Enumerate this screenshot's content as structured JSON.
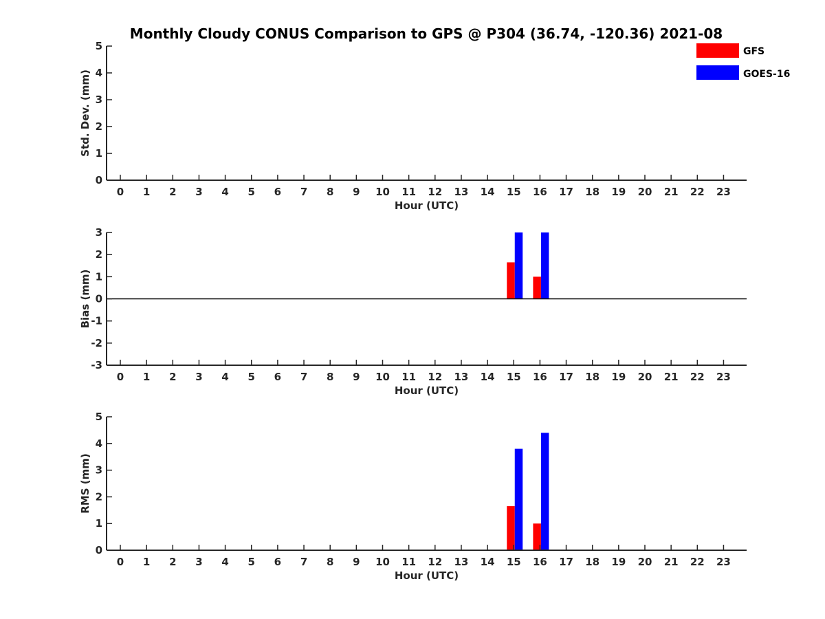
{
  "title": "Monthly Cloudy CONUS Comparison to GPS @ P304 (36.74, -120.36) 2021-08",
  "legend": [
    {
      "name": "GFS",
      "color": "#ff0000"
    },
    {
      "name": "GOES-16",
      "color": "#0000ff"
    }
  ],
  "chart_data": [
    {
      "type": "bar",
      "ylabel": "Std. Dev. (mm)",
      "xlabel": "Hour (UTC)",
      "categories": [
        "0",
        "1",
        "2",
        "3",
        "4",
        "5",
        "6",
        "7",
        "8",
        "9",
        "10",
        "11",
        "12",
        "13",
        "14",
        "15",
        "16",
        "17",
        "18",
        "19",
        "20",
        "21",
        "22",
        "23"
      ],
      "ylim": [
        0,
        5
      ],
      "yticks": [
        "0",
        "1",
        "2",
        "3",
        "4",
        "5"
      ],
      "series": [
        {
          "name": "GFS",
          "values": [
            0,
            0,
            0,
            0,
            0,
            0,
            0,
            0,
            0,
            0,
            0,
            0,
            0,
            0,
            0,
            0,
            0,
            0,
            0,
            0,
            0,
            0,
            0,
            0
          ]
        },
        {
          "name": "GOES-16",
          "values": [
            0,
            0,
            0,
            0,
            0,
            0,
            0,
            0,
            0,
            0,
            0,
            0,
            0,
            0,
            0,
            0,
            0,
            0,
            0,
            0,
            0,
            0,
            0,
            0
          ]
        }
      ]
    },
    {
      "type": "bar",
      "ylabel": "Bias (mm)",
      "xlabel": "Hour (UTC)",
      "categories": [
        "0",
        "1",
        "2",
        "3",
        "4",
        "5",
        "6",
        "7",
        "8",
        "9",
        "10",
        "11",
        "12",
        "13",
        "14",
        "15",
        "16",
        "17",
        "18",
        "19",
        "20",
        "21",
        "22",
        "23"
      ],
      "ylim": [
        -3,
        3
      ],
      "yticks": [
        "-3",
        "-2",
        "-1",
        "0",
        "1",
        "2",
        "3"
      ],
      "zero_line": true,
      "series": [
        {
          "name": "GFS",
          "values": [
            0,
            0,
            0,
            0,
            0,
            0,
            0,
            0,
            0,
            0,
            0,
            0,
            0,
            0,
            0,
            1.65,
            1.0,
            0,
            0,
            0,
            0,
            0,
            0,
            0
          ]
        },
        {
          "name": "GOES-16",
          "values": [
            0,
            0,
            0,
            0,
            0,
            0,
            0,
            0,
            0,
            0,
            0,
            0,
            0,
            0,
            0,
            3.0,
            3.0,
            0,
            0,
            0,
            0,
            0,
            0,
            0
          ]
        }
      ]
    },
    {
      "type": "bar",
      "ylabel": "RMS (mm)",
      "xlabel": "Hour (UTC)",
      "categories": [
        "0",
        "1",
        "2",
        "3",
        "4",
        "5",
        "6",
        "7",
        "8",
        "9",
        "10",
        "11",
        "12",
        "13",
        "14",
        "15",
        "16",
        "17",
        "18",
        "19",
        "20",
        "21",
        "22",
        "23"
      ],
      "ylim": [
        0,
        5
      ],
      "yticks": [
        "0",
        "1",
        "2",
        "3",
        "4",
        "5"
      ],
      "series": [
        {
          "name": "GFS",
          "values": [
            0,
            0,
            0,
            0,
            0,
            0,
            0,
            0,
            0,
            0,
            0,
            0,
            0,
            0,
            0,
            1.65,
            1.0,
            0,
            0,
            0,
            0,
            0,
            0,
            0
          ]
        },
        {
          "name": "GOES-16",
          "values": [
            0,
            0,
            0,
            0,
            0,
            0,
            0,
            0,
            0,
            0,
            0,
            0,
            0,
            0,
            0,
            3.8,
            4.4,
            0,
            0,
            0,
            0,
            0,
            0,
            0
          ]
        }
      ]
    }
  ]
}
